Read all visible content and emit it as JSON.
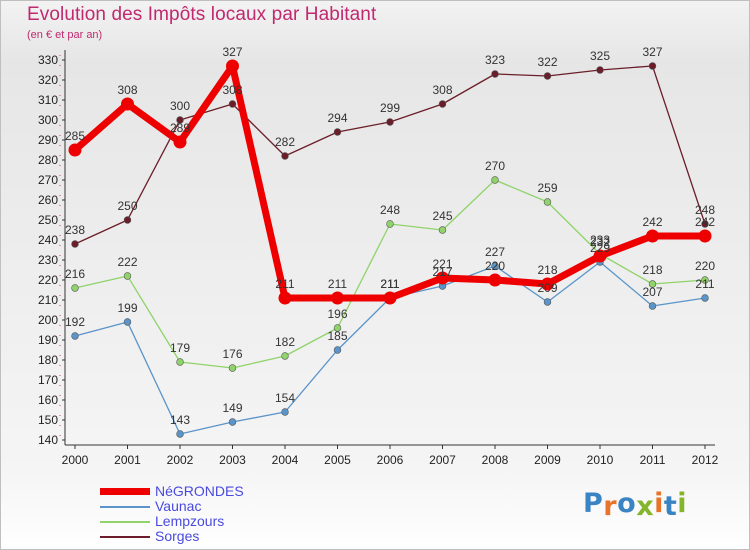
{
  "header": {
    "title": "Evolution des Impôts locaux par Habitant",
    "subtitle": "(en € et par an)"
  },
  "logo": {
    "text": "Proxiti",
    "colors": [
      "#3a84c4",
      "#e8732a",
      "#3a84c4",
      "#84b52a",
      "#e8732a",
      "#3a84c4",
      "#84b52a"
    ]
  },
  "chart_data": {
    "type": "line",
    "title": "Evolution des Impôts locaux par Habitant",
    "subtitle": "(en € et par an)",
    "x": [
      "2000",
      "2001",
      "2002",
      "2003",
      "2004",
      "2005",
      "2006",
      "2007",
      "2008",
      "2009",
      "2010",
      "2011",
      "2012"
    ],
    "ylim": [
      140,
      330
    ],
    "yticks": [
      140,
      150,
      160,
      170,
      180,
      190,
      200,
      210,
      220,
      230,
      240,
      250,
      260,
      270,
      280,
      290,
      300,
      310,
      320,
      330
    ],
    "grid": false,
    "legend_position": "bottom-left",
    "series": [
      {
        "name": "Sorges",
        "color": "#6b1e2a",
        "values": [
          238,
          250,
          300,
          308,
          282,
          294,
          299,
          308,
          323,
          322,
          325,
          327,
          248
        ]
      },
      {
        "name": "Lempzours",
        "color": "#8fd36a",
        "values": [
          216,
          222,
          179,
          176,
          182,
          196,
          248,
          245,
          270,
          259,
          233,
          218,
          220
        ]
      },
      {
        "name": "Vaunac",
        "color": "#5a94c8",
        "values": [
          192,
          199,
          143,
          149,
          154,
          185,
          211,
          217,
          227,
          209,
          229,
          207,
          211
        ]
      },
      {
        "name": "NéGRONDES",
        "color": "#ee0000",
        "values": [
          285,
          308,
          289,
          327,
          211,
          211,
          211,
          221,
          220,
          218,
          232,
          242,
          242
        ]
      }
    ],
    "legend_order": [
      "NéGRONDES",
      "Vaunac",
      "Lempzours",
      "Sorges"
    ]
  }
}
